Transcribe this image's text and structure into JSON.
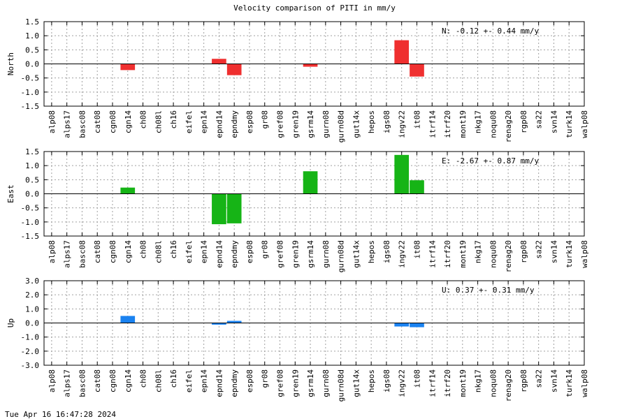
{
  "title": "Velocity comparison of PITI in mm/y",
  "timestamp": "Tue Apr 16 16:47:28 2024",
  "chart_data": [
    {
      "type": "bar",
      "ylabel": "North",
      "ylim": [
        -1.5,
        1.5
      ],
      "yticks": [
        "1.5",
        "1.0",
        "0.5",
        "0.0",
        "-0.5",
        "-1.0",
        "-1.5"
      ],
      "grid": true,
      "color": "#ef2f2f",
      "summary": "N:  -0.12 +-  0.44 mm/y",
      "categories": [
        "alp08",
        "alps17",
        "basc08",
        "cat08",
        "cgn08",
        "cgn14",
        "ch08",
        "ch08l",
        "ch16",
        "eifel",
        "epn14",
        "epnd14",
        "epndmy",
        "esp08",
        "gr08",
        "gref08",
        "gren19",
        "gsrm14",
        "gurn08",
        "gurn08d",
        "gut14x",
        "hepos",
        "igs08",
        "ingv22",
        "it08",
        "itrf14",
        "itrf20",
        "mont19",
        "nkg17",
        "noqu08",
        "renag20",
        "rgp08",
        "sa22",
        "svn14",
        "turk14",
        "walp08"
      ],
      "values": [
        0,
        0,
        0,
        0,
        0,
        -0.22,
        0,
        0,
        0,
        0,
        0,
        0.18,
        -0.4,
        0,
        0,
        0,
        0,
        -0.1,
        0,
        0,
        0,
        0,
        0,
        0.84,
        -0.45,
        0,
        0,
        0,
        0,
        0,
        0,
        0,
        0,
        0,
        0,
        0
      ]
    },
    {
      "type": "bar",
      "ylabel": "East",
      "ylim": [
        -1.5,
        1.5
      ],
      "yticks": [
        "1.5",
        "1.0",
        "0.5",
        "0.0",
        "-0.5",
        "-1.0",
        "-1.5"
      ],
      "grid": true,
      "color": "#16b416",
      "summary": "E:  -2.67 +-  0.87 mm/y",
      "categories": [
        "alp08",
        "alps17",
        "basc08",
        "cat08",
        "cgn08",
        "cgn14",
        "ch08",
        "ch08l",
        "ch16",
        "eifel",
        "epn14",
        "epnd14",
        "epndmy",
        "esp08",
        "gr08",
        "gref08",
        "gren19",
        "gsrm14",
        "gurn08",
        "gurn08d",
        "gut14x",
        "hepos",
        "igs08",
        "ingv22",
        "it08",
        "itrf14",
        "itrf20",
        "mont19",
        "nkg17",
        "noqu08",
        "renag20",
        "rgp08",
        "sa22",
        "svn14",
        "turk14",
        "walp08"
      ],
      "values": [
        0,
        0,
        0,
        0,
        0,
        0.22,
        0,
        0,
        0,
        0,
        0,
        -1.08,
        -1.05,
        0,
        0,
        0,
        0,
        0.8,
        0,
        0,
        0,
        0,
        0,
        1.38,
        0.48,
        0,
        0,
        0,
        0,
        0,
        0,
        0,
        0,
        0,
        0,
        0
      ]
    },
    {
      "type": "bar",
      "ylabel": "Up",
      "ylim": [
        -3.0,
        3.0
      ],
      "yticks": [
        "3.0",
        "2.0",
        "1.0",
        "0.0",
        "-1.0",
        "-2.0",
        "-3.0"
      ],
      "grid": true,
      "color": "#1a82f0",
      "summary": "U:   0.37 +-  0.31 mm/y",
      "categories": [
        "alp08",
        "alps17",
        "basc08",
        "cat08",
        "cgn08",
        "cgn14",
        "ch08",
        "ch08l",
        "ch16",
        "eifel",
        "epn14",
        "epnd14",
        "epndmy",
        "esp08",
        "gr08",
        "gref08",
        "gren19",
        "gsrm14",
        "gurn08",
        "gurn08d",
        "gut14x",
        "hepos",
        "igs08",
        "ingv22",
        "it08",
        "itrf14",
        "itrf20",
        "mont19",
        "nkg17",
        "noqu08",
        "renag20",
        "rgp08",
        "sa22",
        "svn14",
        "turk14",
        "walp08"
      ],
      "values": [
        0,
        0,
        0,
        0,
        0,
        0.5,
        0,
        0,
        0,
        0,
        0,
        -0.12,
        0.15,
        0,
        0,
        0,
        0,
        0,
        0,
        0,
        0,
        0,
        0,
        -0.25,
        -0.3,
        0,
        0,
        0,
        0,
        0,
        0,
        0,
        0,
        0,
        0,
        0
      ]
    }
  ]
}
